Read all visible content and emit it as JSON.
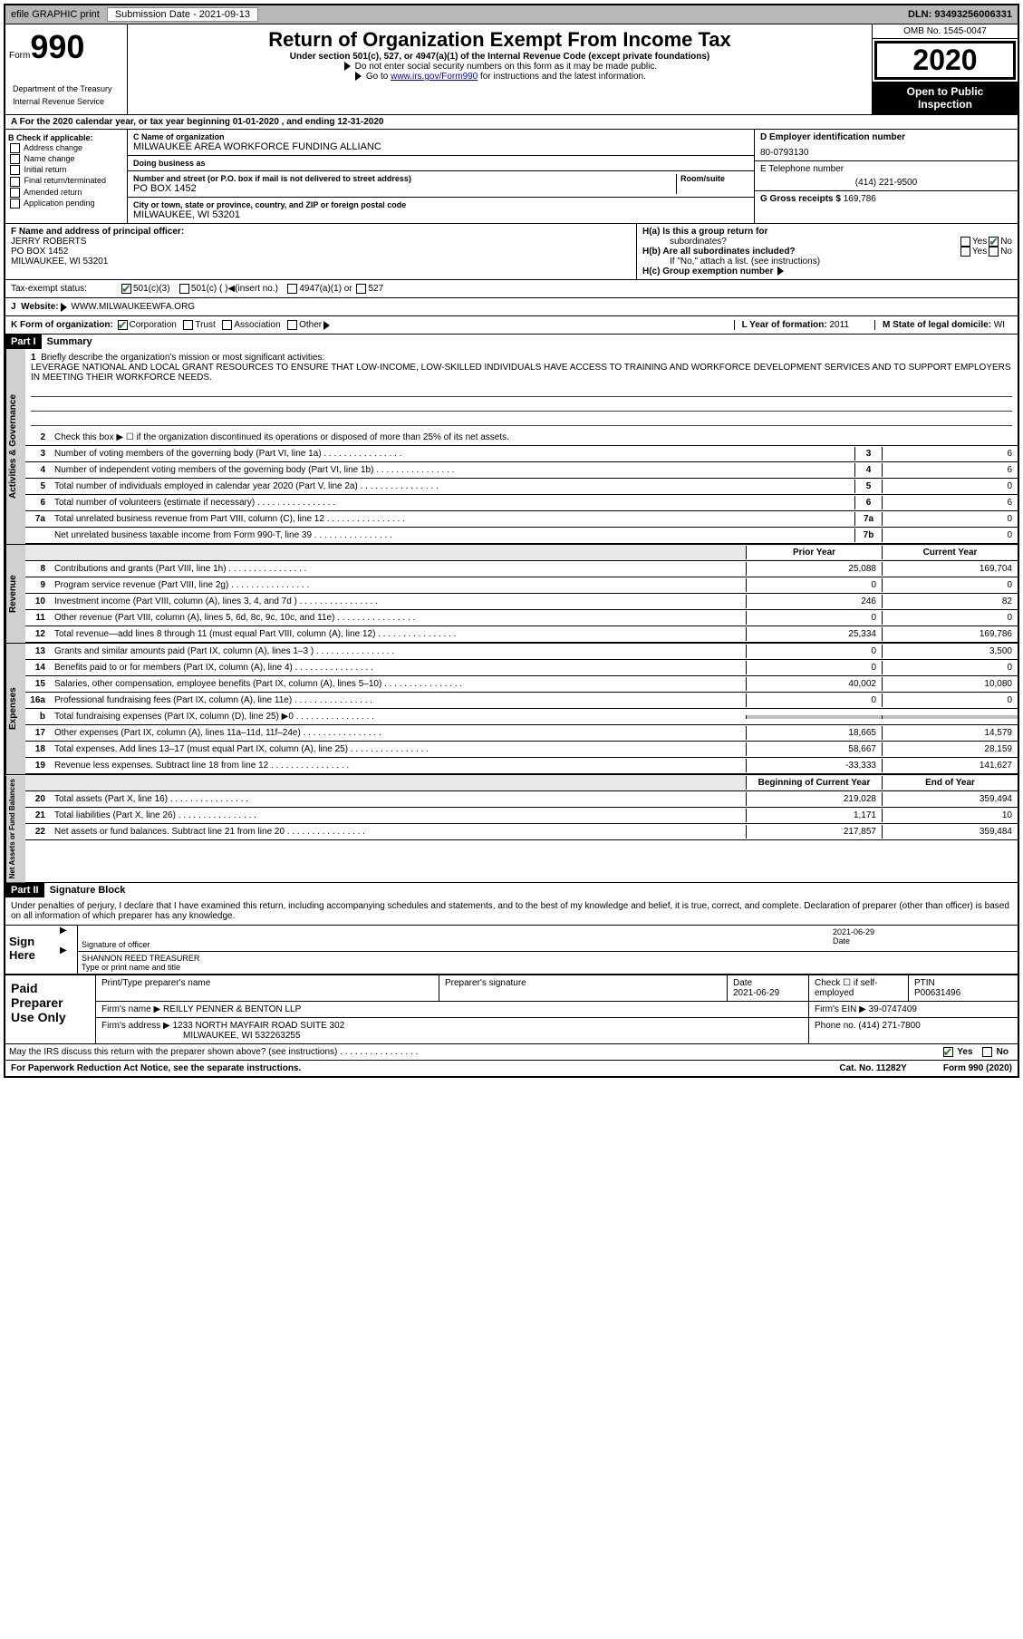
{
  "topbar": {
    "efile": "efile GRAPHIC print",
    "submission_label": "Submission Date",
    "submission_date": "2021-09-13",
    "dln_label": "DLN:",
    "dln": "93493256006331"
  },
  "header": {
    "form_prefix": "Form",
    "form_number": "990",
    "dept1": "Department of the Treasury",
    "dept2": "Internal Revenue Service",
    "title": "Return of Organization Exempt From Income Tax",
    "subtitle": "Under section 501(c), 527, or 4947(a)(1) of the Internal Revenue Code (except private foundations)",
    "note1": "Do not enter social security numbers on this form as it may be made public.",
    "note2_pre": "Go to ",
    "note2_link": "www.irs.gov/Form990",
    "note2_post": " for instructions and the latest information.",
    "omb": "OMB No. 1545-0047",
    "year": "2020",
    "open1": "Open to Public",
    "open2": "Inspection"
  },
  "period": "A For the 2020 calendar year, or tax year beginning 01-01-2020    , and ending 12-31-2020",
  "section_b": {
    "header": "B Check if applicable:",
    "items": [
      "Address change",
      "Name change",
      "Initial return",
      "Final return/terminated",
      "Amended return",
      "Application pending"
    ]
  },
  "section_c": {
    "name_label": "C Name of organization",
    "name": "MILWAUKEE AREA WORKFORCE FUNDING ALLIANC",
    "dba_label": "Doing business as",
    "dba": "",
    "addr_label": "Number and street (or P.O. box if mail is not delivered to street address)",
    "room_label": "Room/suite",
    "addr": "PO BOX 1452",
    "city_label": "City or town, state or province, country, and ZIP or foreign postal code",
    "city": "MILWAUKEE, WI  53201"
  },
  "section_d": {
    "label": "D Employer identification number",
    "ein": "80-0793130"
  },
  "section_e": {
    "label": "E Telephone number",
    "phone": "(414) 221-9500"
  },
  "section_g": {
    "label": "G Gross receipts $",
    "amount": "169,786"
  },
  "section_f": {
    "label": "F  Name and address of principal officer:",
    "name": "JERRY ROBERTS",
    "addr1": "PO BOX 1452",
    "addr2": "MILWAUKEE, WI  53201"
  },
  "section_h": {
    "a_label": "H(a)  Is this a group return for",
    "a_label2": "subordinates?",
    "b_label": "H(b)  Are all subordinates included?",
    "note": "If \"No,\" attach a list. (see instructions)",
    "c_label": "H(c)  Group exemption number"
  },
  "tax_status": {
    "label": "Tax-exempt status:",
    "opt1": "501(c)(3)",
    "opt2": "501(c) (   )",
    "opt2_note": "(insert no.)",
    "opt3": "4947(a)(1) or",
    "opt4": "527"
  },
  "website": {
    "label_j": "J",
    "label": "Website:",
    "url": "WWW.MILWAUKEEWFA.ORG"
  },
  "section_k": {
    "label": "K Form of organization:",
    "opts": [
      "Corporation",
      "Trust",
      "Association",
      "Other"
    ],
    "l_label": "L Year of formation:",
    "l_val": "2011",
    "m_label": "M State of legal domicile:",
    "m_val": "WI"
  },
  "part1": {
    "hdr": "Part I",
    "title": "Summary",
    "q1_label": "1",
    "q1": "Briefly describe the organization's mission or most significant activities:",
    "mission": "LEVERAGE NATIONAL AND LOCAL GRANT RESOURCES TO ENSURE THAT LOW-INCOME, LOW-SKILLED INDIVIDUALS HAVE ACCESS TO TRAINING AND WORKFORCE DEVELOPMENT SERVICES AND TO SUPPORT EMPLOYERS IN MEETING THEIR WORKFORCE NEEDS.",
    "q2_label": "2",
    "q2": "Check this box ▶ ☐ if the organization discontinued its operations or disposed of more than 25% of its net assets.",
    "governance_label": "Activities & Governance",
    "revenue_label": "Revenue",
    "expenses_label": "Expenses",
    "netassets_label": "Net Assets or Fund Balances",
    "prior_hdr": "Prior Year",
    "current_hdr": "Current Year",
    "boy_hdr": "Beginning of Current Year",
    "eoy_hdr": "End of Year",
    "lines_gov": [
      {
        "num": "3",
        "text": "Number of voting members of the governing body (Part VI, line 1a)",
        "box": "3",
        "val": "6"
      },
      {
        "num": "4",
        "text": "Number of independent voting members of the governing body (Part VI, line 1b)",
        "box": "4",
        "val": "6"
      },
      {
        "num": "5",
        "text": "Total number of individuals employed in calendar year 2020 (Part V, line 2a)",
        "box": "5",
        "val": "0"
      },
      {
        "num": "6",
        "text": "Total number of volunteers (estimate if necessary)",
        "box": "6",
        "val": "6"
      },
      {
        "num": "7a",
        "text": "Total unrelated business revenue from Part VIII, column (C), line 12",
        "box": "7a",
        "val": "0"
      },
      {
        "num": "",
        "text": "Net unrelated business taxable income from Form 990-T, line 39",
        "box": "7b",
        "val": "0"
      }
    ],
    "lines_rev": [
      {
        "num": "8",
        "text": "Contributions and grants (Part VIII, line 1h)",
        "prior": "25,088",
        "curr": "169,704"
      },
      {
        "num": "9",
        "text": "Program service revenue (Part VIII, line 2g)",
        "prior": "0",
        "curr": "0"
      },
      {
        "num": "10",
        "text": "Investment income (Part VIII, column (A), lines 3, 4, and 7d )",
        "prior": "246",
        "curr": "82"
      },
      {
        "num": "11",
        "text": "Other revenue (Part VIII, column (A), lines 5, 6d, 8c, 9c, 10c, and 11e)",
        "prior": "0",
        "curr": "0"
      },
      {
        "num": "12",
        "text": "Total revenue—add lines 8 through 11 (must equal Part VIII, column (A), line 12)",
        "prior": "25,334",
        "curr": "169,786"
      }
    ],
    "lines_exp": [
      {
        "num": "13",
        "text": "Grants and similar amounts paid (Part IX, column (A), lines 1–3 )",
        "prior": "0",
        "curr": "3,500"
      },
      {
        "num": "14",
        "text": "Benefits paid to or for members (Part IX, column (A), line 4)",
        "prior": "0",
        "curr": "0"
      },
      {
        "num": "15",
        "text": "Salaries, other compensation, employee benefits (Part IX, column (A), lines 5–10)",
        "prior": "40,002",
        "curr": "10,080"
      },
      {
        "num": "16a",
        "text": "Professional fundraising fees (Part IX, column (A), line 11e)",
        "prior": "0",
        "curr": "0"
      },
      {
        "num": "b",
        "text": "Total fundraising expenses (Part IX, column (D), line 25) ▶0",
        "prior": "",
        "curr": "",
        "shaded": true
      },
      {
        "num": "17",
        "text": "Other expenses (Part IX, column (A), lines 11a–11d, 11f–24e)",
        "prior": "18,665",
        "curr": "14,579"
      },
      {
        "num": "18",
        "text": "Total expenses. Add lines 13–17 (must equal Part IX, column (A), line 25)",
        "prior": "58,667",
        "curr": "28,159"
      },
      {
        "num": "19",
        "text": "Revenue less expenses. Subtract line 18 from line 12",
        "prior": "-33,333",
        "curr": "141,627"
      }
    ],
    "lines_net": [
      {
        "num": "20",
        "text": "Total assets (Part X, line 16)",
        "prior": "219,028",
        "curr": "359,494"
      },
      {
        "num": "21",
        "text": "Total liabilities (Part X, line 26)",
        "prior": "1,171",
        "curr": "10"
      },
      {
        "num": "22",
        "text": "Net assets or fund balances. Subtract line 21 from line 20",
        "prior": "217,857",
        "curr": "359,484"
      }
    ]
  },
  "part2": {
    "hdr": "Part II",
    "title": "Signature Block",
    "decl": "Under penalties of perjury, I declare that I have examined this return, including accompanying schedules and statements, and to the best of my knowledge and belief, it is true, correct, and complete. Declaration of preparer (other than officer) is based on all information of which preparer has any knowledge.",
    "sign_here": "Sign Here",
    "sig_officer_label": "Signature of officer",
    "sig_date": "2021-06-29",
    "date_label": "Date",
    "officer_name": "SHANNON REED TREASURER",
    "officer_type_label": "Type or print name and title",
    "paid_label": "Paid Preparer Use Only",
    "prep_name_label": "Print/Type preparer's name",
    "prep_sig_label": "Preparer's signature",
    "prep_date_label": "Date",
    "prep_date": "2021-06-29",
    "self_emp_label": "Check ☐ if self-employed",
    "ptin_label": "PTIN",
    "ptin": "P00631496",
    "firm_name_label": "Firm's name    ▶",
    "firm_name": "REILLY PENNER & BENTON LLP",
    "firm_ein_label": "Firm's EIN ▶",
    "firm_ein": "39-0747409",
    "firm_addr_label": "Firm's address ▶",
    "firm_addr1": "1233 NORTH MAYFAIR ROAD SUITE 302",
    "firm_addr2": "MILWAUKEE, WI  532263255",
    "phone_label": "Phone no.",
    "phone": "(414) 271-7800",
    "discuss": "May the IRS discuss this return with the preparer shown above? (see instructions)",
    "yes": "Yes",
    "no": "No"
  },
  "footer": {
    "left": "For Paperwork Reduction Act Notice, see the separate instructions.",
    "mid": "Cat. No. 11282Y",
    "right": "Form 990 (2020)"
  }
}
